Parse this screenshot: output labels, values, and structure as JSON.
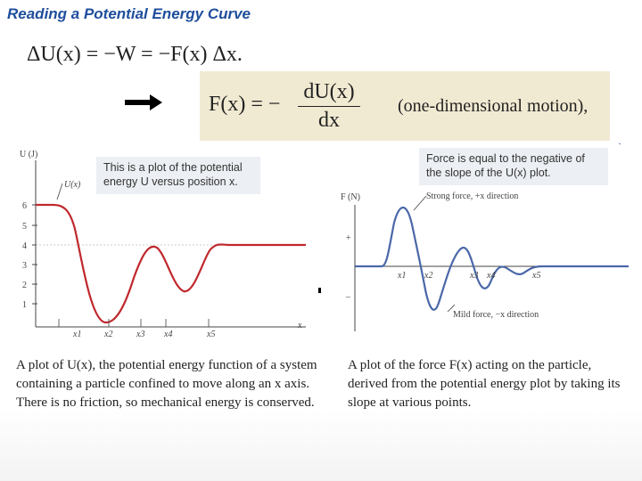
{
  "slide": {
    "title": "Reading a Potential Energy Curve"
  },
  "equations": {
    "work_relation": "ΔU(x) = −W = −F(x) Δx.",
    "force_lhs": "F(x) = −",
    "force_num": "dU(x)",
    "force_den": "dx",
    "force_note": "(one-dimensional motion),"
  },
  "left_figure": {
    "y_axis_label": "U (J)",
    "curve_label": "U(x)",
    "y_ticks": [
      "6",
      "5",
      "4",
      "3",
      "2",
      "1"
    ],
    "x_ticks": [
      "x1",
      "x2",
      "x3",
      "x4",
      "x5"
    ],
    "x_axis_label": "x",
    "callout": "This is a plot of the potential energy U versus position x.",
    "curve_color": "#c0282d"
  },
  "right_figure": {
    "y_axis_label": "F (N)",
    "strong_label": "Strong force, +x direction",
    "mild_label": "Mild force, −x direction",
    "plus_tick": "+",
    "minus_tick": "–",
    "x_ticks": [
      "x1",
      "x2",
      "x3",
      "x4",
      "x5"
    ],
    "callout": "Force is equal to the negative of the slope of the U(x) plot.",
    "curve_color": "#4a67a8"
  },
  "captions": {
    "left": "A plot of U(x), the potential energy function of a system containing a particle confined to move along an x axis. There is no friction, so mechanical energy is conserved.",
    "right": "A plot of the force F(x) acting on the particle, derived from the potential energy plot by taking its slope at various points."
  }
}
